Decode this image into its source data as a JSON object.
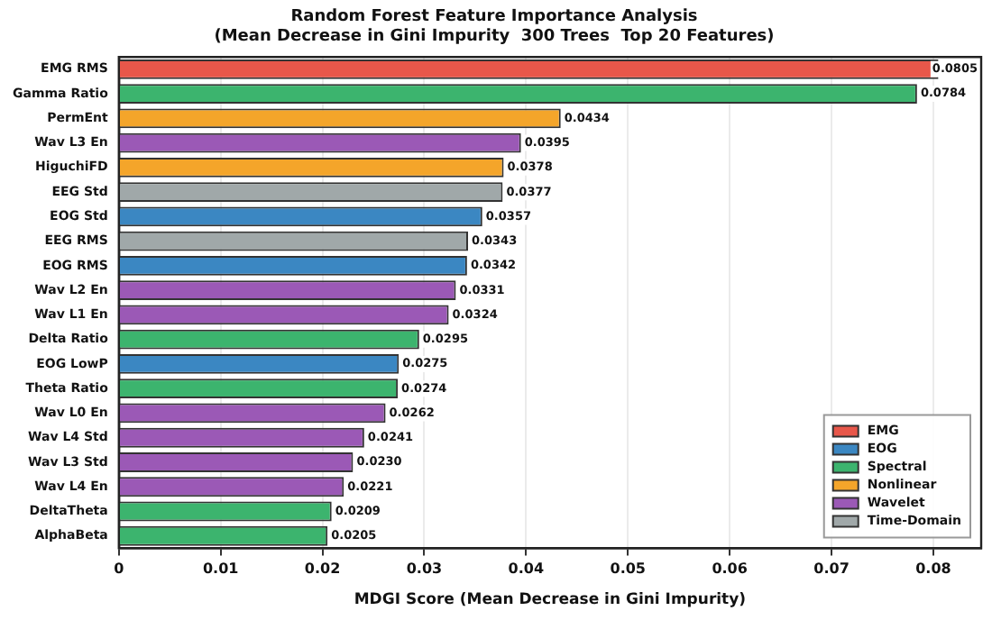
{
  "chart_data": {
    "type": "bar",
    "orientation": "horizontal",
    "stacked": true,
    "title": "Random Forest Feature Importance Analysis\n(Mean Decrease in Gini Impurity  300 Trees  Top 20 Features)",
    "xlabel": "MDGI Score (Mean Decrease in Gini Impurity)",
    "categories": [
      "EMG RMS",
      "Gamma Ratio",
      "PermEnt",
      "Wav L3 En",
      "HiguchiFD",
      "EEG Std",
      "EOG Std",
      "EEG RMS",
      "EOG RMS",
      "Wav L2 En",
      "Wav L1 En",
      "Delta Ratio",
      "EOG LowP",
      "Theta Ratio",
      "Wav L0 En",
      "Wav L4 Std",
      "Wav L3 Std",
      "Wav L4 En",
      "DeltaTheta",
      "AlphaBeta"
    ],
    "series": [
      {
        "name": "EMG",
        "color": "#e8574a",
        "values": [
          0.0805,
          null,
          null,
          null,
          null,
          null,
          null,
          null,
          null,
          null,
          null,
          null,
          null,
          null,
          null,
          null,
          null,
          null,
          null,
          null
        ],
        "value_labels": [
          "0.0805",
          null,
          null,
          null,
          null,
          null,
          null,
          null,
          null,
          null,
          null,
          null,
          null,
          null,
          null,
          null,
          null,
          null,
          null,
          null
        ]
      },
      {
        "name": "EOG",
        "color": "#3b87c2",
        "values": [
          null,
          null,
          null,
          null,
          null,
          null,
          0.0357,
          null,
          0.0342,
          null,
          null,
          null,
          0.0275,
          null,
          null,
          null,
          null,
          null,
          null,
          null
        ],
        "value_labels": [
          null,
          null,
          null,
          null,
          null,
          null,
          "0.0357",
          null,
          "0.0342",
          null,
          null,
          null,
          "0.0275",
          null,
          null,
          null,
          null,
          null,
          null,
          null
        ]
      },
      {
        "name": "Spectral",
        "color": "#3cb46e",
        "values": [
          null,
          0.0784,
          null,
          null,
          null,
          null,
          null,
          null,
          null,
          null,
          null,
          0.0295,
          null,
          0.0274,
          null,
          null,
          null,
          null,
          0.0209,
          0.0205
        ],
        "value_labels": [
          null,
          "0.0784",
          null,
          null,
          null,
          null,
          null,
          null,
          null,
          null,
          null,
          "0.0295",
          null,
          "0.0274",
          null,
          null,
          null,
          null,
          "0.0209",
          "0.0205"
        ]
      },
      {
        "name": "Nonlinear",
        "color": "#f4a52a",
        "values": [
          null,
          null,
          0.0434,
          null,
          0.0378,
          null,
          null,
          null,
          null,
          null,
          null,
          null,
          null,
          null,
          null,
          null,
          null,
          null,
          null,
          null
        ],
        "value_labels": [
          null,
          null,
          "0.0434",
          null,
          "0.0378",
          null,
          null,
          null,
          null,
          null,
          null,
          null,
          null,
          null,
          null,
          null,
          null,
          null,
          null,
          null
        ]
      },
      {
        "name": "Wavelet",
        "color": "#9b59b6",
        "values": [
          null,
          null,
          null,
          0.0395,
          null,
          null,
          null,
          null,
          null,
          0.0331,
          0.0324,
          null,
          null,
          null,
          0.0262,
          0.0241,
          0.023,
          0.0221,
          null,
          null
        ],
        "value_labels": [
          null,
          null,
          null,
          "0.0395",
          null,
          null,
          null,
          null,
          null,
          "0.0331",
          "0.0324",
          null,
          null,
          null,
          "0.0262",
          "0.0241",
          "0.0230",
          "0.0221",
          null,
          null
        ]
      },
      {
        "name": "Time-Domain",
        "color": "#a0a8a9",
        "values": [
          null,
          null,
          null,
          null,
          null,
          0.0377,
          null,
          0.0343,
          null,
          null,
          null,
          null,
          null,
          null,
          null,
          null,
          null,
          null,
          null,
          null
        ],
        "value_labels": [
          null,
          null,
          null,
          null,
          null,
          "0.0377",
          null,
          "0.0343",
          null,
          null,
          null,
          null,
          null,
          null,
          null,
          null,
          null,
          null,
          null,
          null
        ]
      }
    ],
    "xlim": [
      0,
      0.0847
    ],
    "xticks": [
      0,
      0.01,
      0.02,
      0.03,
      0.04,
      0.05,
      0.06,
      0.07,
      0.08
    ],
    "grid": "x",
    "legend": "bottom right"
  }
}
